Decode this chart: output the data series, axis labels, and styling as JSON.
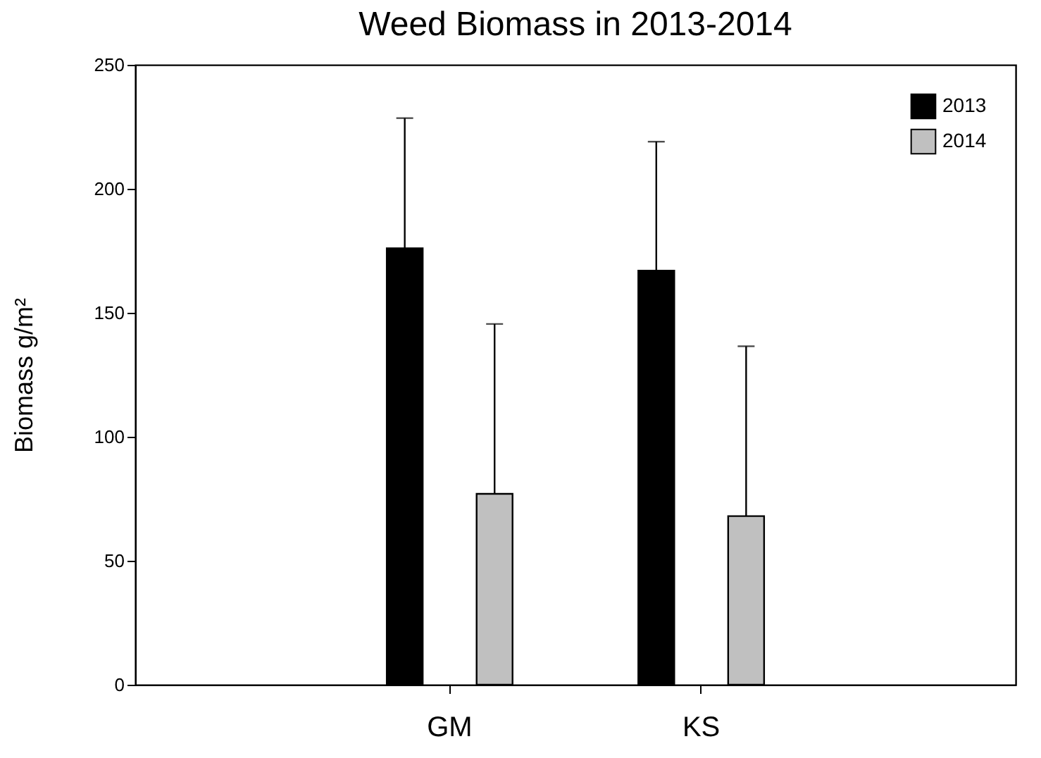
{
  "chart_data": {
    "type": "bar",
    "title": "Weed Biomass in 2013-2014",
    "ylabel": "Biomass g/m²",
    "categories": [
      "GM",
      "KS"
    ],
    "series": [
      {
        "name": "2013",
        "color": "#000000",
        "values": [
          176,
          167
        ],
        "errors": [
          [
            176,
            228.5
          ],
          [
            167,
            219
          ]
        ]
      },
      {
        "name": "2014",
        "color": "#c0c0c0",
        "values": [
          77,
          68
        ],
        "errors": [
          [
            77,
            145.5
          ],
          [
            68,
            136.5
          ]
        ]
      }
    ],
    "ylim": [
      0,
      250
    ],
    "yticks": [
      0,
      50,
      100,
      150,
      200,
      250
    ],
    "grid": false,
    "legend": "top right"
  }
}
